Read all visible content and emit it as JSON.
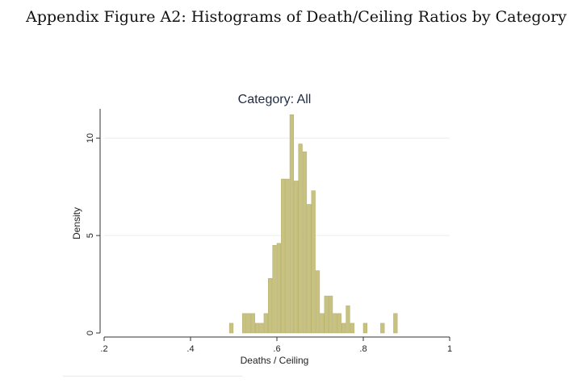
{
  "page": {
    "title": "Appendix Figure A2: Histograms of Death/Ceiling Ratios by Category"
  },
  "chart_data": {
    "type": "bar",
    "title": "Category: All",
    "xlabel": "Deaths / Ceiling",
    "ylabel": "Density",
    "xlim": [
      0.2,
      1.0
    ],
    "ylim": [
      0,
      11.5
    ],
    "xticks": [
      0.2,
      0.4,
      0.6,
      0.8,
      1.0
    ],
    "xtick_labels": [
      ".2",
      ".4",
      ".6",
      ".8",
      "1"
    ],
    "yticks": [
      0,
      5,
      10
    ],
    "ytick_labels": [
      "0",
      "5",
      "10"
    ],
    "grid": true,
    "bar_color": "#c8c281",
    "bin_width": 0.01,
    "bins": [
      {
        "x": 0.495,
        "density": 0.5
      },
      {
        "x": 0.525,
        "density": 1.0
      },
      {
        "x": 0.535,
        "density": 1.0
      },
      {
        "x": 0.545,
        "density": 1.0
      },
      {
        "x": 0.555,
        "density": 0.5
      },
      {
        "x": 0.565,
        "density": 0.5
      },
      {
        "x": 0.575,
        "density": 1.0
      },
      {
        "x": 0.585,
        "density": 2.8
      },
      {
        "x": 0.595,
        "density": 4.5
      },
      {
        "x": 0.605,
        "density": 4.6
      },
      {
        "x": 0.615,
        "density": 7.9
      },
      {
        "x": 0.625,
        "density": 7.9
      },
      {
        "x": 0.635,
        "density": 11.2
      },
      {
        "x": 0.645,
        "density": 7.8
      },
      {
        "x": 0.655,
        "density": 9.7
      },
      {
        "x": 0.665,
        "density": 9.3
      },
      {
        "x": 0.675,
        "density": 6.6
      },
      {
        "x": 0.685,
        "density": 7.3
      },
      {
        "x": 0.695,
        "density": 3.2
      },
      {
        "x": 0.705,
        "density": 1.0
      },
      {
        "x": 0.715,
        "density": 1.9
      },
      {
        "x": 0.725,
        "density": 1.9
      },
      {
        "x": 0.735,
        "density": 1.0
      },
      {
        "x": 0.745,
        "density": 1.0
      },
      {
        "x": 0.755,
        "density": 0.5
      },
      {
        "x": 0.765,
        "density": 1.4
      },
      {
        "x": 0.775,
        "density": 0.5
      },
      {
        "x": 0.805,
        "density": 0.5
      },
      {
        "x": 0.845,
        "density": 0.5
      },
      {
        "x": 0.875,
        "density": 1.0
      }
    ]
  }
}
